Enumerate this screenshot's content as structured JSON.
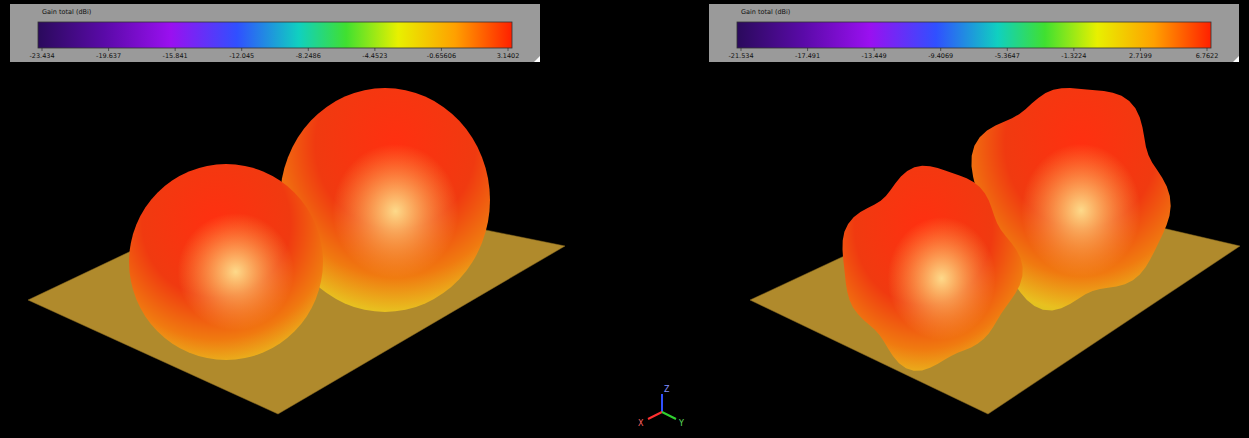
{
  "chart_data": [
    {
      "type": "radiation_pattern",
      "title": "Gain total (dBi)",
      "color_range": [
        -23.434,
        3.1402
      ],
      "color_ticks": [
        -23.434,
        -19.637,
        -15.841,
        -12.045,
        -8.2486,
        -4.4523,
        -0.65606,
        3.1402
      ]
    },
    {
      "type": "radiation_pattern",
      "title": "Gain total (dBi)",
      "color_range": [
        -21.534,
        6.7622
      ],
      "color_ticks": [
        -21.534,
        -17.491,
        -13.449,
        -9.4069,
        -5.3647,
        -1.3224,
        2.7199,
        6.7622
      ]
    }
  ],
  "axis_triad": {
    "x": "X",
    "y": "Y",
    "z": "Z"
  }
}
